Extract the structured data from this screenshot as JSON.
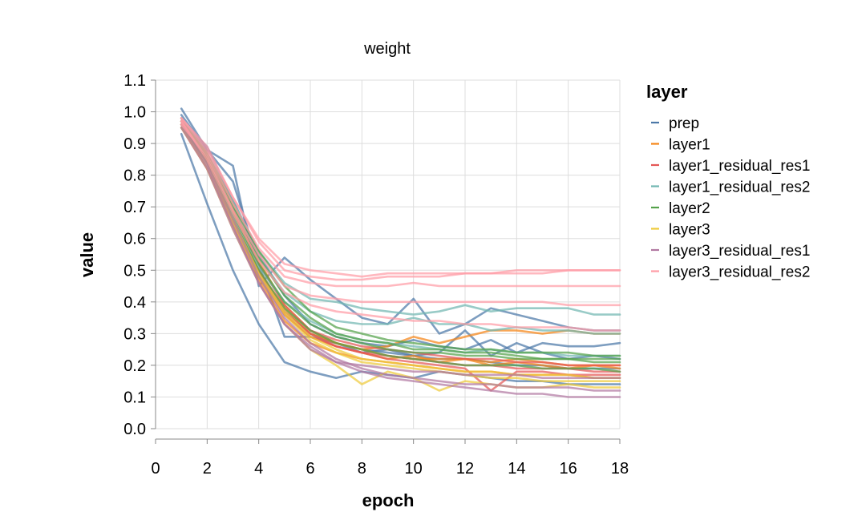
{
  "chart_data": {
    "type": "line",
    "title": "weight",
    "xlabel": "epoch",
    "ylabel": "value",
    "xlim": [
      0,
      18
    ],
    "ylim": [
      0,
      1.1
    ],
    "x_ticks": [
      "0",
      "2",
      "4",
      "6",
      "8",
      "10",
      "12",
      "14",
      "16",
      "18"
    ],
    "y_ticks": [
      "0.0",
      "0.1",
      "0.2",
      "0.3",
      "0.4",
      "0.5",
      "0.6",
      "0.7",
      "0.8",
      "0.9",
      "1.0",
      "1.1"
    ],
    "grid": true,
    "legend_title": "layer",
    "legend_position": "right",
    "legend": [
      {
        "label": "prep",
        "color": "#4c78a8"
      },
      {
        "label": "layer1",
        "color": "#f58518"
      },
      {
        "label": "layer1_residual_res1",
        "color": "#e45756"
      },
      {
        "label": "layer1_residual_res2",
        "color": "#72b7b2"
      },
      {
        "label": "layer2",
        "color": "#54a24b"
      },
      {
        "label": "layer3",
        "color": "#eeca3b"
      },
      {
        "label": "layer3_residual_res1",
        "color": "#b279a2"
      },
      {
        "label": "layer3_residual_res2",
        "color": "#ff9da6"
      }
    ],
    "x": [
      1,
      2,
      3,
      4,
      5,
      6,
      7,
      8,
      9,
      10,
      11,
      12,
      13,
      14,
      15,
      16,
      17,
      18
    ],
    "series": [
      {
        "group": 0,
        "values": [
          0.93,
          0.71,
          0.5,
          0.33,
          0.21,
          0.18,
          0.16,
          0.18,
          0.17,
          0.16,
          0.18,
          0.17,
          0.16,
          0.15,
          0.15,
          0.14,
          0.14,
          0.14
        ]
      },
      {
        "group": 0,
        "values": [
          1.01,
          0.88,
          0.83,
          0.45,
          0.54,
          0.47,
          0.41,
          0.35,
          0.33,
          0.41,
          0.3,
          0.33,
          0.38,
          0.36,
          0.34,
          0.32,
          0.31,
          0.31
        ]
      },
      {
        "group": 0,
        "values": [
          0.99,
          0.88,
          0.78,
          0.52,
          0.29,
          0.29,
          0.27,
          0.25,
          0.24,
          0.23,
          0.22,
          0.22,
          0.21,
          0.2,
          0.2,
          0.19,
          0.19,
          0.19
        ]
      },
      {
        "group": 0,
        "values": [
          0.98,
          0.86,
          0.66,
          0.48,
          0.37,
          0.3,
          0.27,
          0.24,
          0.25,
          0.23,
          0.24,
          0.31,
          0.23,
          0.27,
          0.24,
          0.22,
          0.23,
          0.22
        ]
      },
      {
        "group": 0,
        "values": [
          0.97,
          0.89,
          0.72,
          0.55,
          0.42,
          0.33,
          0.29,
          0.27,
          0.26,
          0.28,
          0.26,
          0.25,
          0.28,
          0.24,
          0.27,
          0.26,
          0.26,
          0.27
        ]
      },
      {
        "group": 1,
        "values": [
          0.97,
          0.85,
          0.68,
          0.53,
          0.39,
          0.31,
          0.27,
          0.25,
          0.26,
          0.29,
          0.27,
          0.29,
          0.31,
          0.31,
          0.3,
          0.31,
          0.3,
          0.3
        ]
      },
      {
        "group": 1,
        "values": [
          0.96,
          0.84,
          0.65,
          0.48,
          0.36,
          0.29,
          0.26,
          0.24,
          0.22,
          0.23,
          0.21,
          0.22,
          0.2,
          0.21,
          0.2,
          0.19,
          0.2,
          0.19
        ]
      },
      {
        "group": 1,
        "values": [
          0.98,
          0.86,
          0.69,
          0.5,
          0.38,
          0.3,
          0.27,
          0.25,
          0.23,
          0.22,
          0.22,
          0.22,
          0.21,
          0.22,
          0.21,
          0.2,
          0.2,
          0.2
        ]
      },
      {
        "group": 1,
        "values": [
          0.95,
          0.82,
          0.64,
          0.47,
          0.34,
          0.27,
          0.24,
          0.22,
          0.21,
          0.2,
          0.19,
          0.18,
          0.18,
          0.17,
          0.17,
          0.17,
          0.16,
          0.16
        ]
      },
      {
        "group": 2,
        "values": [
          0.97,
          0.84,
          0.66,
          0.5,
          0.37,
          0.3,
          0.26,
          0.24,
          0.22,
          0.21,
          0.2,
          0.19,
          0.12,
          0.18,
          0.18,
          0.17,
          0.17,
          0.17
        ]
      },
      {
        "group": 2,
        "values": [
          0.96,
          0.85,
          0.67,
          0.49,
          0.36,
          0.29,
          0.26,
          0.24,
          0.23,
          0.22,
          0.21,
          0.2,
          0.2,
          0.19,
          0.19,
          0.19,
          0.18,
          0.18
        ]
      },
      {
        "group": 2,
        "values": [
          0.98,
          0.87,
          0.7,
          0.52,
          0.39,
          0.31,
          0.28,
          0.26,
          0.25,
          0.24,
          0.23,
          0.22,
          0.22,
          0.21,
          0.21,
          0.2,
          0.2,
          0.2
        ]
      },
      {
        "group": 3,
        "values": [
          0.98,
          0.87,
          0.72,
          0.56,
          0.46,
          0.41,
          0.4,
          0.38,
          0.37,
          0.36,
          0.37,
          0.39,
          0.37,
          0.38,
          0.38,
          0.38,
          0.36,
          0.36
        ]
      },
      {
        "group": 3,
        "values": [
          0.97,
          0.86,
          0.7,
          0.54,
          0.43,
          0.37,
          0.34,
          0.33,
          0.33,
          0.35,
          0.33,
          0.33,
          0.31,
          0.32,
          0.31,
          0.31,
          0.3,
          0.3
        ]
      },
      {
        "group": 3,
        "values": [
          0.96,
          0.84,
          0.67,
          0.51,
          0.4,
          0.34,
          0.3,
          0.28,
          0.27,
          0.26,
          0.25,
          0.24,
          0.25,
          0.24,
          0.24,
          0.23,
          0.23,
          0.23
        ]
      },
      {
        "group": 4,
        "values": [
          0.97,
          0.87,
          0.71,
          0.56,
          0.45,
          0.37,
          0.32,
          0.3,
          0.28,
          0.27,
          0.26,
          0.25,
          0.25,
          0.24,
          0.24,
          0.24,
          0.23,
          0.23
        ]
      },
      {
        "group": 4,
        "values": [
          0.96,
          0.85,
          0.68,
          0.52,
          0.4,
          0.33,
          0.29,
          0.27,
          0.25,
          0.24,
          0.24,
          0.23,
          0.23,
          0.22,
          0.22,
          0.22,
          0.22,
          0.22
        ]
      },
      {
        "group": 4,
        "values": [
          0.97,
          0.86,
          0.7,
          0.54,
          0.42,
          0.35,
          0.3,
          0.28,
          0.27,
          0.25,
          0.25,
          0.24,
          0.24,
          0.23,
          0.22,
          0.22,
          0.21,
          0.21
        ]
      },
      {
        "group": 4,
        "values": [
          0.95,
          0.84,
          0.66,
          0.5,
          0.38,
          0.31,
          0.27,
          0.25,
          0.23,
          0.22,
          0.21,
          0.2,
          0.2,
          0.2,
          0.19,
          0.19,
          0.19,
          0.18
        ]
      },
      {
        "group": 5,
        "values": [
          0.96,
          0.82,
          0.63,
          0.46,
          0.33,
          0.25,
          0.2,
          0.14,
          0.18,
          0.16,
          0.12,
          0.15,
          0.14,
          0.13,
          0.13,
          0.14,
          0.13,
          0.13
        ]
      },
      {
        "group": 5,
        "values": [
          0.97,
          0.84,
          0.66,
          0.49,
          0.37,
          0.29,
          0.25,
          0.22,
          0.21,
          0.2,
          0.19,
          0.18,
          0.18,
          0.17,
          0.17,
          0.17,
          0.16,
          0.16
        ]
      },
      {
        "group": 5,
        "values": [
          0.95,
          0.83,
          0.65,
          0.48,
          0.36,
          0.28,
          0.24,
          0.21,
          0.2,
          0.19,
          0.18,
          0.17,
          0.16,
          0.16,
          0.15,
          0.15,
          0.15,
          0.15
        ]
      },
      {
        "group": 6,
        "values": [
          0.96,
          0.83,
          0.64,
          0.46,
          0.33,
          0.25,
          0.21,
          0.18,
          0.16,
          0.15,
          0.14,
          0.13,
          0.12,
          0.11,
          0.11,
          0.1,
          0.1,
          0.1
        ]
      },
      {
        "group": 6,
        "values": [
          0.97,
          0.84,
          0.66,
          0.48,
          0.35,
          0.27,
          0.22,
          0.19,
          0.17,
          0.16,
          0.15,
          0.14,
          0.14,
          0.13,
          0.13,
          0.13,
          0.12,
          0.12
        ]
      },
      {
        "group": 6,
        "values": [
          0.95,
          0.82,
          0.63,
          0.46,
          0.33,
          0.26,
          0.21,
          0.2,
          0.19,
          0.18,
          0.18,
          0.17,
          0.17,
          0.17,
          0.16,
          0.16,
          0.16,
          0.16
        ]
      },
      {
        "group": 7,
        "values": [
          0.98,
          0.88,
          0.73,
          0.59,
          0.5,
          0.48,
          0.47,
          0.47,
          0.48,
          0.48,
          0.48,
          0.49,
          0.49,
          0.49,
          0.49,
          0.5,
          0.5,
          0.5
        ]
      },
      {
        "group": 7,
        "values": [
          0.97,
          0.87,
          0.71,
          0.57,
          0.48,
          0.46,
          0.45,
          0.45,
          0.45,
          0.46,
          0.45,
          0.45,
          0.45,
          0.45,
          0.45,
          0.45,
          0.45,
          0.45
        ]
      },
      {
        "group": 7,
        "values": [
          0.98,
          0.89,
          0.73,
          0.6,
          0.52,
          0.5,
          0.49,
          0.48,
          0.49,
          0.49,
          0.49,
          0.49,
          0.49,
          0.5,
          0.5,
          0.5,
          0.5,
          0.5
        ]
      },
      {
        "group": 7,
        "values": [
          0.96,
          0.86,
          0.69,
          0.55,
          0.45,
          0.42,
          0.41,
          0.4,
          0.4,
          0.4,
          0.4,
          0.4,
          0.4,
          0.4,
          0.4,
          0.39,
          0.39,
          0.39
        ]
      },
      {
        "group": 7,
        "values": [
          0.97,
          0.85,
          0.68,
          0.53,
          0.43,
          0.39,
          0.37,
          0.36,
          0.35,
          0.34,
          0.34,
          0.33,
          0.33,
          0.32,
          0.32,
          0.32,
          0.31,
          0.31
        ]
      }
    ]
  }
}
